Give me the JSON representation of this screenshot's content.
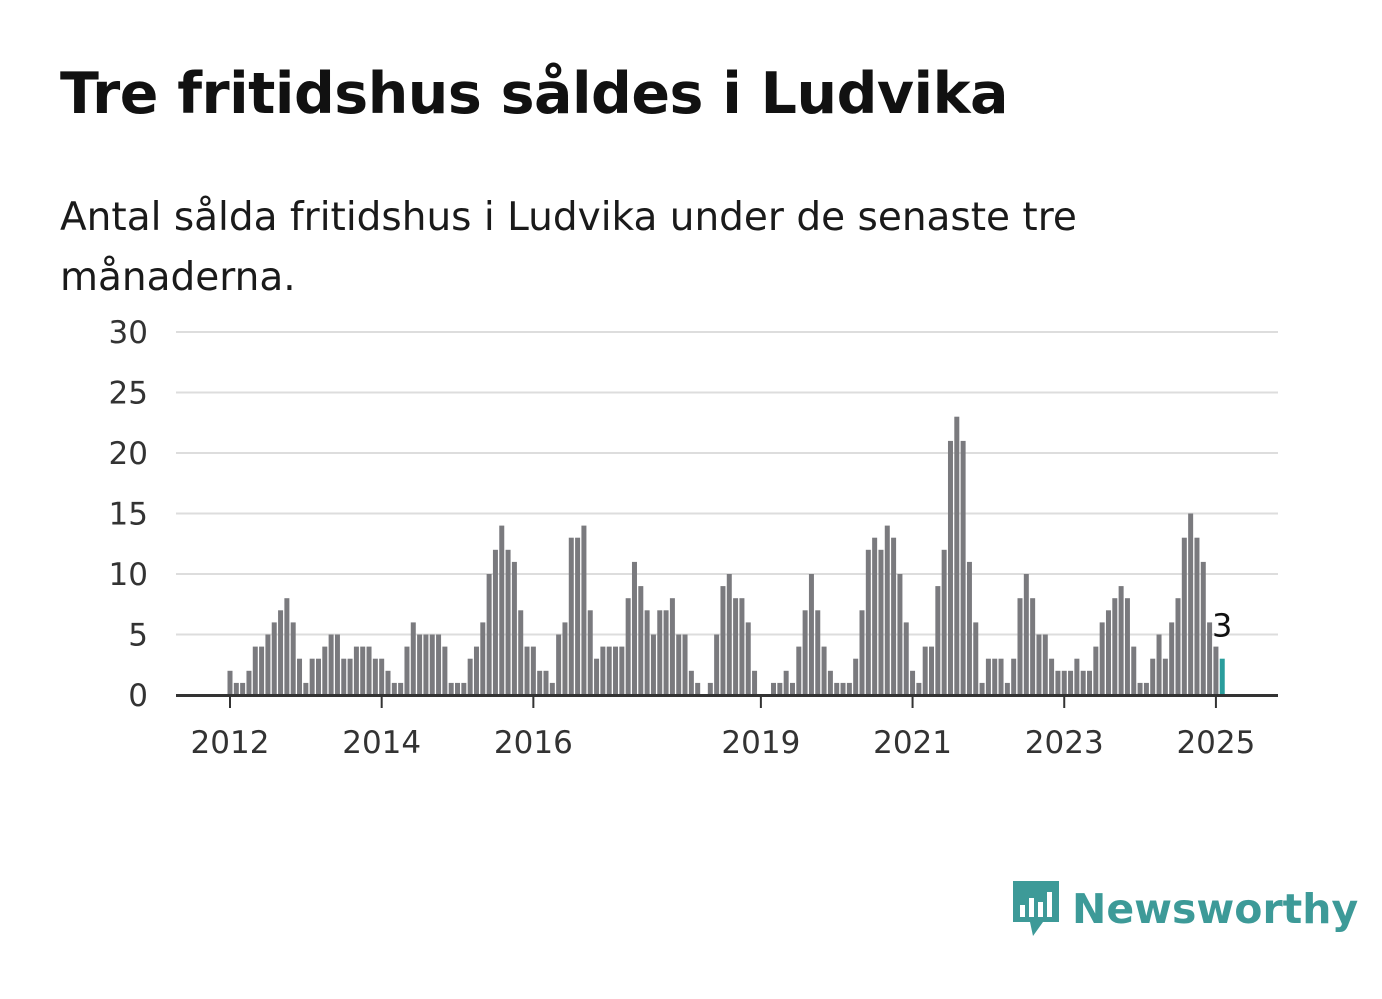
{
  "header": {
    "title": "Tre fritidshus såldes i Ludvika",
    "subtitle": "Antal sålda fritidshus i Ludvika under de senaste tre månaderna."
  },
  "brand": {
    "name": "Newsworthy",
    "icon": "newsworthy-logo-icon",
    "color": "#3d9a98"
  },
  "colors": {
    "bar": "#7a7a7e",
    "highlight": "#2a9d9c",
    "grid": "#dddddd",
    "axis": "#333333"
  },
  "chart_data": {
    "type": "bar",
    "title": "Tre fritidshus såldes i Ludvika",
    "subtitle": "Antal sålda fritidshus i Ludvika under de senaste tre månaderna.",
    "xlabel": "",
    "ylabel": "",
    "ylim": [
      0,
      30
    ],
    "yticks": [
      "0",
      "5",
      "10",
      "15",
      "20",
      "25",
      "30"
    ],
    "xticks": [
      "2012",
      "2014",
      "2016",
      "2019",
      "2021",
      "2023",
      "2025"
    ],
    "grid": true,
    "legend": "none",
    "annotation": {
      "text": "3",
      "target": "last-bar"
    },
    "highlight": "last-bar",
    "values": [
      0,
      0,
      0,
      0,
      0,
      0,
      0,
      0,
      2,
      1,
      1,
      2,
      4,
      4,
      5,
      6,
      7,
      8,
      6,
      3,
      1,
      3,
      3,
      4,
      5,
      5,
      3,
      3,
      4,
      4,
      4,
      3,
      3,
      2,
      1,
      1,
      4,
      6,
      5,
      5,
      5,
      5,
      4,
      1,
      1,
      1,
      3,
      4,
      6,
      10,
      12,
      14,
      12,
      11,
      7,
      4,
      4,
      2,
      2,
      1,
      5,
      6,
      13,
      13,
      14,
      7,
      3,
      4,
      4,
      4,
      4,
      8,
      11,
      9,
      7,
      5,
      7,
      7,
      8,
      5,
      5,
      2,
      1,
      0,
      1,
      5,
      9,
      10,
      8,
      8,
      6,
      2,
      0,
      0,
      1,
      1,
      2,
      1,
      4,
      7,
      10,
      7,
      4,
      2,
      1,
      1,
      1,
      3,
      7,
      12,
      13,
      12,
      14,
      13,
      10,
      6,
      2,
      1,
      4,
      4,
      9,
      12,
      21,
      23,
      21,
      11,
      6,
      1,
      3,
      3,
      3,
      1,
      3,
      8,
      10,
      8,
      5,
      5,
      3,
      2,
      2,
      2,
      3,
      2,
      2,
      4,
      6,
      7,
      8,
      9,
      8,
      4,
      1,
      1,
      3,
      5,
      3,
      6,
      8,
      13,
      15,
      13,
      11,
      6,
      4,
      3
    ]
  }
}
